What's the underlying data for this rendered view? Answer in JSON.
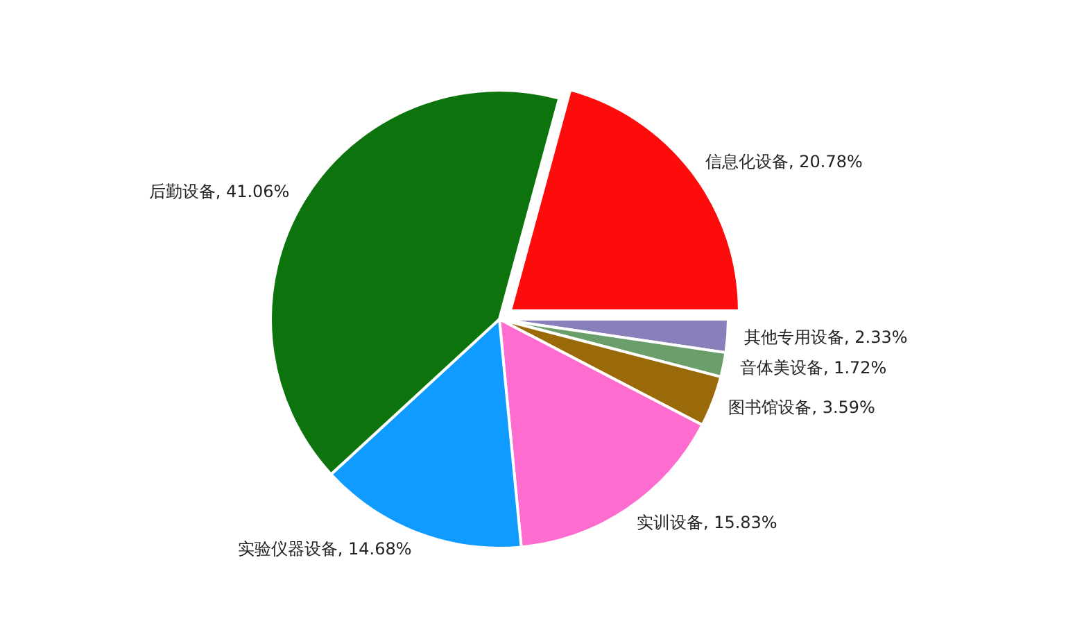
{
  "chart_data": {
    "type": "pie",
    "categories": [
      "信息化设备",
      "其他专用设备",
      "音体美设备",
      "图书馆设备",
      "实训设备",
      "实验仪器设备",
      "后勤设备"
    ],
    "values": [
      20.78,
      2.33,
      1.72,
      3.59,
      15.83,
      14.68,
      41.06
    ],
    "colors": [
      "#fe0c0c",
      "#8880bb",
      "#6a9e6a",
      "#9a6a0a",
      "#ff6ccf",
      "#0f9bff",
      "#0d730d"
    ],
    "value_labels": [
      "20.78%",
      "2.33%",
      "1.72%",
      "3.59%",
      "15.83%",
      "14.68%",
      "41.06%"
    ],
    "legend": false
  }
}
